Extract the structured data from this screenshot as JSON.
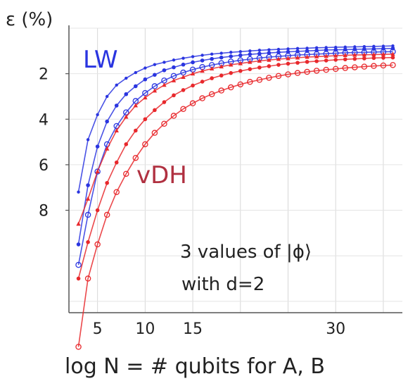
{
  "chart_data": {
    "type": "line",
    "title": "",
    "xlabel": "log N = # qubits for A, B",
    "ylabel": "ε (%)",
    "xlim": [
      2,
      37
    ],
    "ylim": [
      12.5,
      0
    ],
    "y_inverted": true,
    "grid": true,
    "xticks": [
      5,
      10,
      15,
      30
    ],
    "yticks": [
      2,
      4,
      6,
      8
    ],
    "x": [
      3,
      4,
      5,
      6,
      7,
      8,
      9,
      10,
      11,
      12,
      13,
      14,
      15,
      16,
      17,
      18,
      19,
      20,
      21,
      22,
      23,
      24,
      25,
      26,
      27,
      28,
      29,
      30,
      31,
      32,
      33,
      34,
      35,
      36
    ],
    "series": [
      {
        "group": "LW",
        "color": "#2a35e0",
        "marker": "dot",
        "values": [
          7.2,
          4.9,
          3.8,
          3.0,
          2.5,
          2.2,
          1.95,
          1.75,
          1.6,
          1.5,
          1.4,
          1.32,
          1.25,
          1.19,
          1.14,
          1.1,
          1.06,
          1.03,
          1.0,
          0.97,
          0.95,
          0.93,
          0.91,
          0.89,
          0.88,
          0.86,
          0.85,
          0.84,
          0.83,
          0.82,
          0.81,
          0.8,
          0.79,
          0.78
        ]
      },
      {
        "group": "LW",
        "color": "#2a35e0",
        "marker": "star",
        "values": [
          9.5,
          6.9,
          5.2,
          4.1,
          3.4,
          2.9,
          2.55,
          2.25,
          2.05,
          1.85,
          1.72,
          1.6,
          1.5,
          1.42,
          1.35,
          1.29,
          1.24,
          1.19,
          1.15,
          1.12,
          1.09,
          1.06,
          1.04,
          1.02,
          1.0,
          0.98,
          0.96,
          0.95,
          0.94,
          0.93,
          0.92,
          0.91,
          0.9,
          0.89
        ]
      },
      {
        "group": "LW",
        "color": "#2a35e0",
        "marker": "circle",
        "values": [
          10.4,
          8.2,
          6.3,
          5.1,
          4.3,
          3.7,
          3.2,
          2.85,
          2.55,
          2.3,
          2.1,
          1.95,
          1.82,
          1.71,
          1.62,
          1.54,
          1.47,
          1.41,
          1.36,
          1.31,
          1.27,
          1.24,
          1.21,
          1.18,
          1.16,
          1.14,
          1.12,
          1.1,
          1.08,
          1.07,
          1.06,
          1.05,
          1.04,
          1.03
        ]
      },
      {
        "group": "vDH",
        "color": "#e8282c",
        "marker": "triangle",
        "values": [
          8.6,
          7.5,
          6.3,
          5.3,
          4.5,
          3.9,
          3.4,
          3.05,
          2.75,
          2.5,
          2.3,
          2.15,
          2.0,
          1.88,
          1.78,
          1.69,
          1.61,
          1.55,
          1.49,
          1.44,
          1.4,
          1.36,
          1.33,
          1.3,
          1.27,
          1.25,
          1.23,
          1.21,
          1.19,
          1.18,
          1.17,
          1.16,
          1.15,
          1.14
        ]
      },
      {
        "group": "vDH",
        "color": "#e8282c",
        "marker": "star",
        "values": [
          11.0,
          9.4,
          8.0,
          6.8,
          5.9,
          5.1,
          4.5,
          4.0,
          3.6,
          3.25,
          2.95,
          2.72,
          2.52,
          2.35,
          2.2,
          2.08,
          1.97,
          1.88,
          1.8,
          1.73,
          1.67,
          1.61,
          1.56,
          1.52,
          1.48,
          1.45,
          1.42,
          1.39,
          1.37,
          1.35,
          1.33,
          1.31,
          1.3,
          1.29
        ]
      },
      {
        "group": "vDH",
        "color": "#e8282c",
        "marker": "circle",
        "values": [
          14.0,
          11.0,
          9.5,
          8.2,
          7.2,
          6.4,
          5.7,
          5.1,
          4.6,
          4.2,
          3.85,
          3.55,
          3.3,
          3.08,
          2.9,
          2.74,
          2.6,
          2.47,
          2.36,
          2.27,
          2.18,
          2.1,
          2.03,
          1.97,
          1.92,
          1.87,
          1.83,
          1.79,
          1.75,
          1.72,
          1.69,
          1.66,
          1.64,
          1.62
        ]
      }
    ],
    "annotations": {
      "lw": "LW",
      "vdh": "vDH",
      "note_line1": "3 values of |ϕ⟩",
      "note_line2": "with d=2"
    }
  }
}
